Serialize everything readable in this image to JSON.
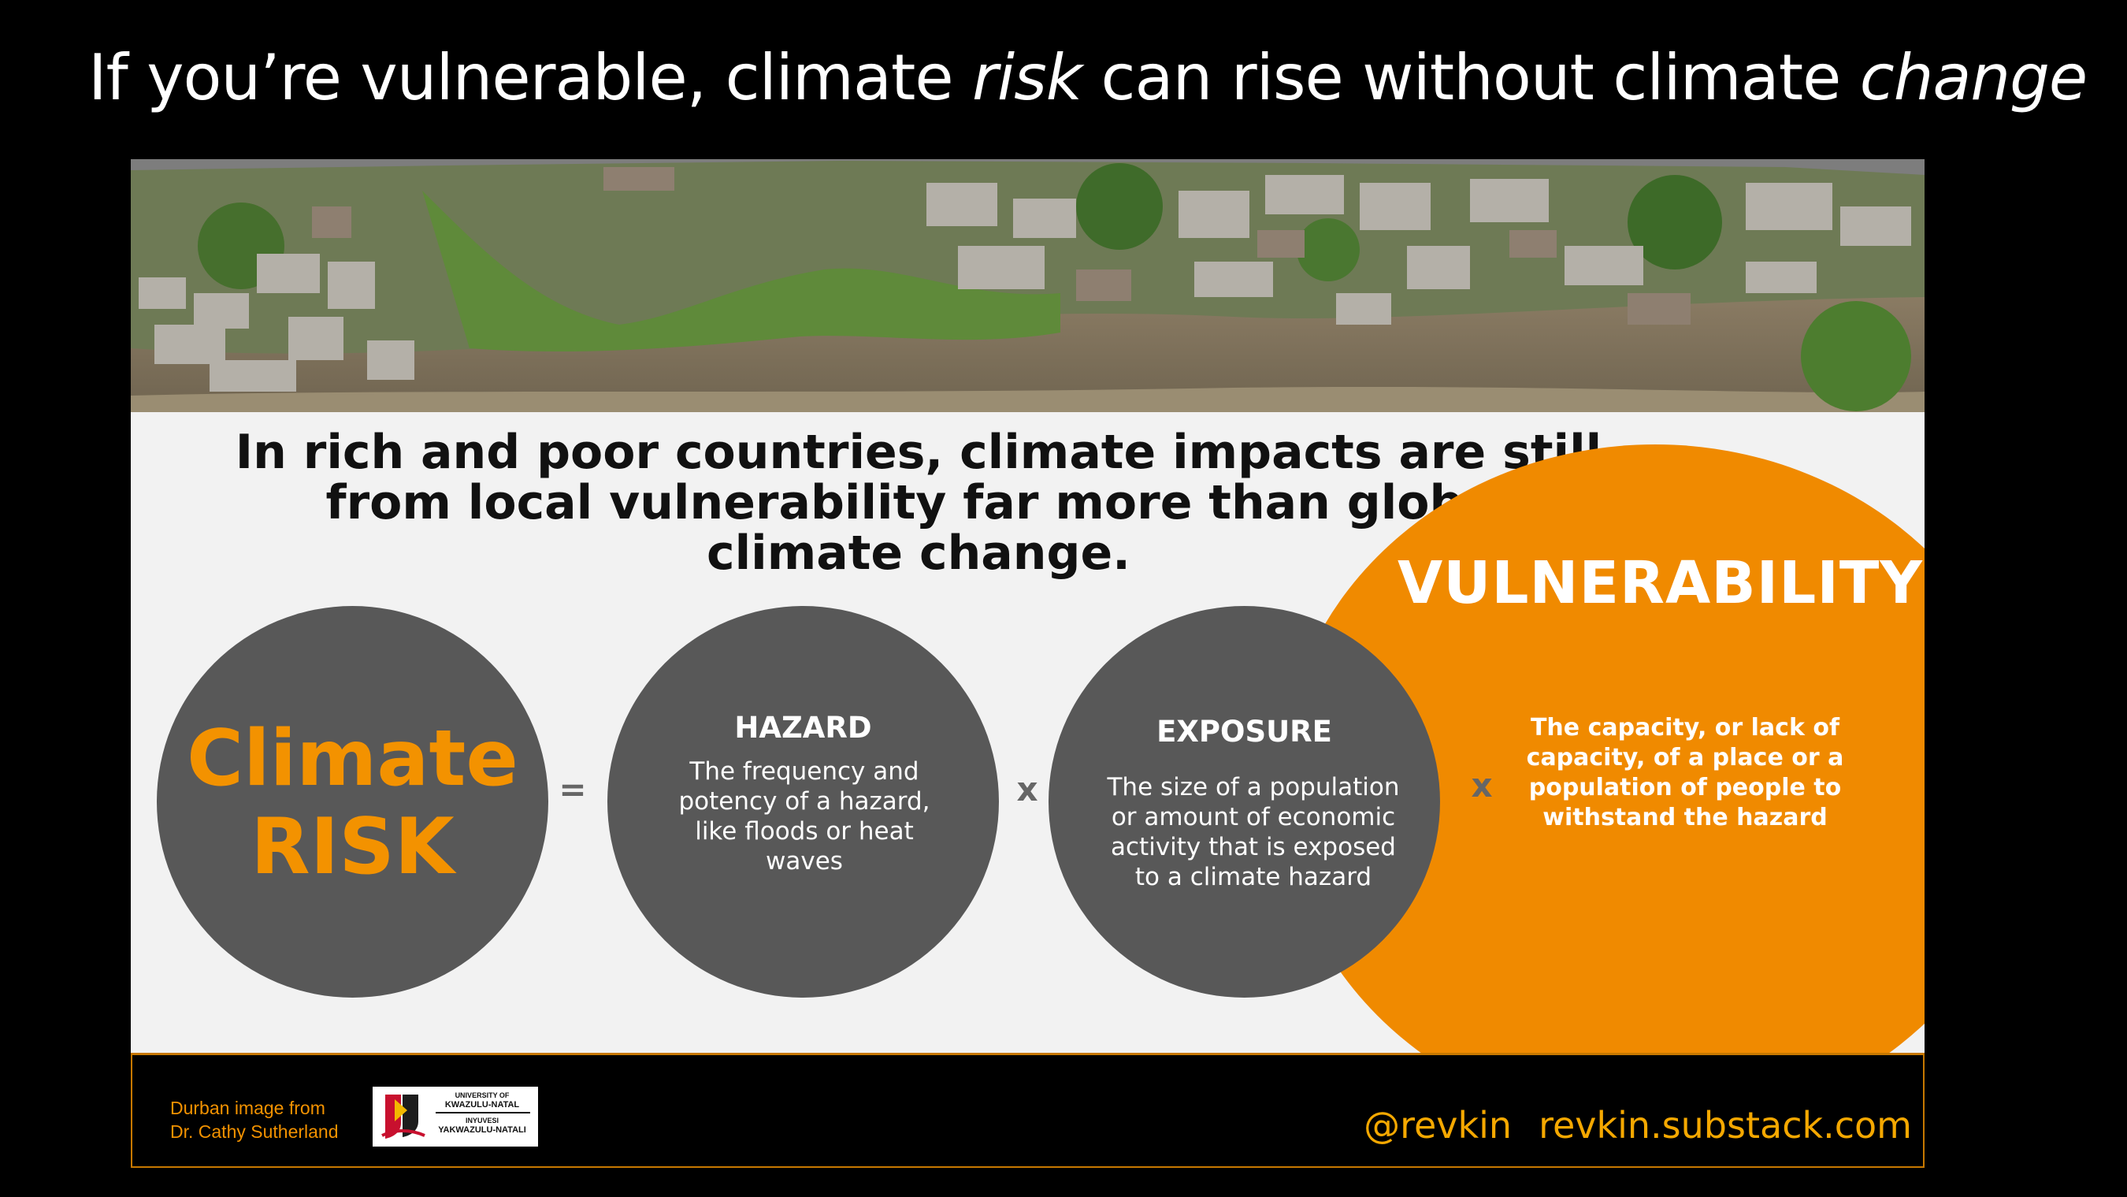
{
  "title": {
    "part1": "If you’re vulnerable, climate ",
    "emph1": "risk",
    "part2": " can rise without climate ",
    "emph2": "change"
  },
  "headline": "In rich and poor countries, climate impacts are still from local vulnerability far more than global climate change.",
  "equation": {
    "risk_line1": "Climate",
    "risk_line2": "RISK",
    "equals": "=",
    "times": "x",
    "hazard": {
      "heading": "HAZARD",
      "text": "The frequency and potency of a hazard, like floods or heat waves"
    },
    "exposure": {
      "heading": "EXPOSURE",
      "text": "The size of a population or amount of economic activity that is exposed to a climate hazard"
    },
    "vulnerability": {
      "heading": "VULNERABILITY",
      "text": "The capacity, or lack of capacity, of a place or a population of people to withstand the hazard"
    }
  },
  "footer": {
    "credit_line1": "Durban image from",
    "credit_line2": "Dr. Cathy Sutherland",
    "logo": {
      "line1": "UNIVERSITY OF",
      "line2": "KWAZULU-NATAL",
      "line3": "INYUVESI",
      "line4": "YAKWAZULU-NATALI"
    },
    "handle": "@revkin",
    "site": "revkin.substack.com"
  },
  "colors": {
    "accent_orange": "#f08a00",
    "circle_gray": "#585858",
    "panel_bg": "#f2f2f2",
    "footer_text": "#f5a800"
  }
}
